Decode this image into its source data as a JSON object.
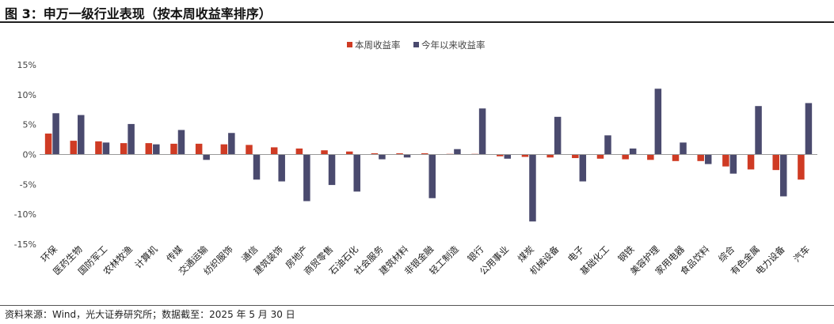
{
  "figure": {
    "title": "图 3：申万一级行业表现（按本周收益率排序）",
    "source": "资料来源：Wind，光大证券研究所；数据截至：2025 年 5 月 30 日"
  },
  "colors": {
    "week": "#cf3b24",
    "ytd": "#4a4a6e",
    "axis": "#999999"
  },
  "chart_data": {
    "type": "bar",
    "title": "",
    "xlabel": "",
    "ylabel": "",
    "ylim": [
      -15,
      15
    ],
    "yticks": [
      15,
      10,
      5,
      0,
      -5,
      -10,
      -15
    ],
    "ytick_labels": [
      "15%",
      "10%",
      "5%",
      "0%",
      "-5%",
      "-10%",
      "-15%"
    ],
    "grid": false,
    "legend_position": "top-center",
    "categories": [
      "环保",
      "医药生物",
      "国防军工",
      "农林牧渔",
      "计算机",
      "传媒",
      "交通运输",
      "纺织服饰",
      "通信",
      "建筑装饰",
      "房地产",
      "商贸零售",
      "石油石化",
      "社会服务",
      "建筑材料",
      "非银金融",
      "轻工制造",
      "银行",
      "公用事业",
      "煤炭",
      "机械设备",
      "电子",
      "基础化工",
      "钢铁",
      "美容护理",
      "家用电器",
      "食品饮料",
      "综合",
      "有色金属",
      "电力设备",
      "汽车"
    ],
    "series": [
      {
        "name": "本周收益率",
        "color": "#cf3b24",
        "values": [
          3.5,
          2.3,
          2.2,
          1.9,
          1.9,
          1.8,
          1.8,
          1.7,
          1.6,
          1.2,
          1.0,
          0.7,
          0.5,
          0.2,
          0.2,
          0.2,
          0.1,
          0.1,
          -0.3,
          -0.4,
          -0.5,
          -0.6,
          -0.7,
          -0.8,
          -0.9,
          -1.1,
          -1.1,
          -2.0,
          -2.5,
          -2.6,
          -4.2
        ]
      },
      {
        "name": "今年以来收益率",
        "color": "#4a4a6e",
        "values": [
          6.9,
          6.6,
          2.0,
          5.1,
          1.7,
          4.1,
          -0.9,
          3.6,
          -4.2,
          -4.5,
          -7.8,
          -5.1,
          -6.2,
          -0.8,
          -0.5,
          -7.3,
          0.9,
          7.7,
          -0.7,
          -11.2,
          6.3,
          -4.5,
          3.2,
          1.0,
          11.0,
          2.0,
          -1.6,
          -3.2,
          8.1,
          -7.0,
          8.6
        ]
      }
    ]
  }
}
